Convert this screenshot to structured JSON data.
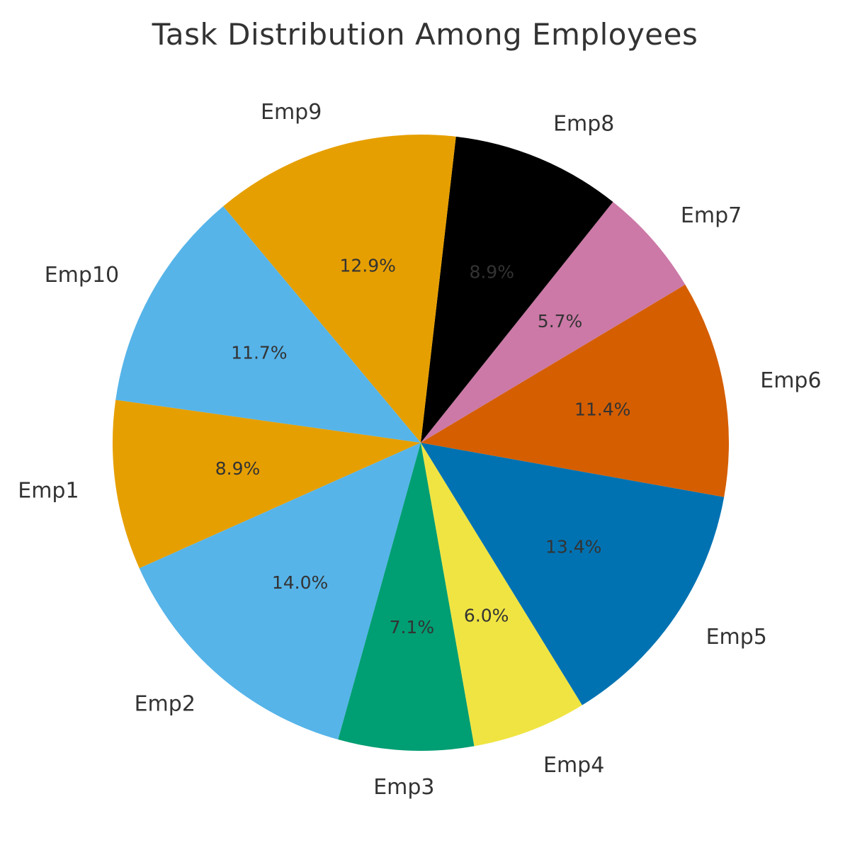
{
  "chart_data": {
    "type": "pie",
    "title": "Task Distribution Among Employees",
    "start_angle_deg": 172,
    "direction": "counterclockwise",
    "slices": [
      {
        "label": "Emp1",
        "value": 8.9,
        "pct_label": "8.9%",
        "color": "#E69F00",
        "pct_color": "#333333"
      },
      {
        "label": "Emp2",
        "value": 14.0,
        "pct_label": "14.0%",
        "color": "#56B4E9",
        "pct_color": "#333333"
      },
      {
        "label": "Emp3",
        "value": 7.1,
        "pct_label": "7.1%",
        "color": "#009E73",
        "pct_color": "#333333"
      },
      {
        "label": "Emp4",
        "value": 6.0,
        "pct_label": "6.0%",
        "color": "#F0E442",
        "pct_color": "#333333"
      },
      {
        "label": "Emp5",
        "value": 13.4,
        "pct_label": "13.4%",
        "color": "#0072B2",
        "pct_color": "#333333"
      },
      {
        "label": "Emp6",
        "value": 11.4,
        "pct_label": "11.4%",
        "color": "#D55E00",
        "pct_color": "#333333"
      },
      {
        "label": "Emp7",
        "value": 5.7,
        "pct_label": "5.7%",
        "color": "#CC79A7",
        "pct_color": "#333333"
      },
      {
        "label": "Emp8",
        "value": 8.9,
        "pct_label": "8.9%",
        "color": "#000000",
        "pct_color": "#333333"
      },
      {
        "label": "Emp9",
        "value": 12.9,
        "pct_label": "12.9%",
        "color": "#E69F00",
        "pct_color": "#333333"
      },
      {
        "label": "Emp10",
        "value": 11.7,
        "pct_label": "11.7%",
        "color": "#56B4E9",
        "pct_color": "#333333"
      }
    ]
  }
}
